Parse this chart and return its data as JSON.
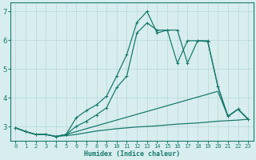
{
  "xlabel": "Humidex (Indice chaleur)",
  "xlim": [
    -0.5,
    23.5
  ],
  "ylim": [
    2.5,
    7.3
  ],
  "yticks": [
    3,
    4,
    5,
    6,
    7
  ],
  "xticks": [
    0,
    1,
    2,
    3,
    4,
    5,
    6,
    7,
    8,
    9,
    10,
    11,
    12,
    13,
    14,
    15,
    16,
    17,
    18,
    19,
    20,
    21,
    22,
    23
  ],
  "bg_color": "#d8eeee",
  "grid_color": "#b8d8d8",
  "line_color": "#1a7a6e",
  "line1_x": [
    0,
    1,
    2,
    3,
    4,
    5,
    6,
    7,
    8,
    9,
    10,
    11,
    12,
    13,
    14,
    15,
    16,
    17,
    18,
    19,
    20,
    21,
    22,
    23
  ],
  "line1_y": [
    2.95,
    2.82,
    2.72,
    2.72,
    2.65,
    2.72,
    3.3,
    3.55,
    3.75,
    4.05,
    4.75,
    5.5,
    6.62,
    7.0,
    6.25,
    6.35,
    6.35,
    5.2,
    5.98,
    5.95,
    4.4,
    3.35,
    3.6,
    3.25
  ],
  "line2_x": [
    0,
    1,
    2,
    3,
    4,
    5,
    6,
    7,
    8,
    9,
    10,
    11,
    12,
    13,
    14,
    15,
    16,
    17,
    18,
    19,
    20,
    21,
    22,
    23
  ],
  "line2_y": [
    2.95,
    2.82,
    2.72,
    2.72,
    2.65,
    2.72,
    3.0,
    3.18,
    3.4,
    3.65,
    4.35,
    4.75,
    6.25,
    6.6,
    6.35,
    6.35,
    5.2,
    5.98,
    5.98,
    5.98,
    4.4,
    3.35,
    3.6,
    3.25
  ],
  "line3_x": [
    0,
    1,
    2,
    3,
    4,
    5,
    6,
    7,
    8,
    9,
    10,
    11,
    12,
    13,
    14,
    15,
    16,
    17,
    18,
    19,
    20,
    21,
    22,
    23
  ],
  "line3_y": [
    2.95,
    2.82,
    2.72,
    2.72,
    2.65,
    2.72,
    2.82,
    2.92,
    3.02,
    3.12,
    3.22,
    3.32,
    3.42,
    3.52,
    3.62,
    3.72,
    3.82,
    3.92,
    4.02,
    4.12,
    4.22,
    3.35,
    3.6,
    3.25
  ],
  "line4_x": [
    0,
    1,
    2,
    3,
    4,
    5,
    6,
    7,
    8,
    9,
    10,
    11,
    12,
    13,
    14,
    15,
    16,
    17,
    18,
    19,
    20,
    21,
    22,
    23
  ],
  "line4_y": [
    2.95,
    2.82,
    2.72,
    2.72,
    2.65,
    2.68,
    2.72,
    2.78,
    2.84,
    2.88,
    2.92,
    2.95,
    2.98,
    3.0,
    3.02,
    3.05,
    3.08,
    3.1,
    3.12,
    3.15,
    3.18,
    3.2,
    3.22,
    3.25
  ]
}
